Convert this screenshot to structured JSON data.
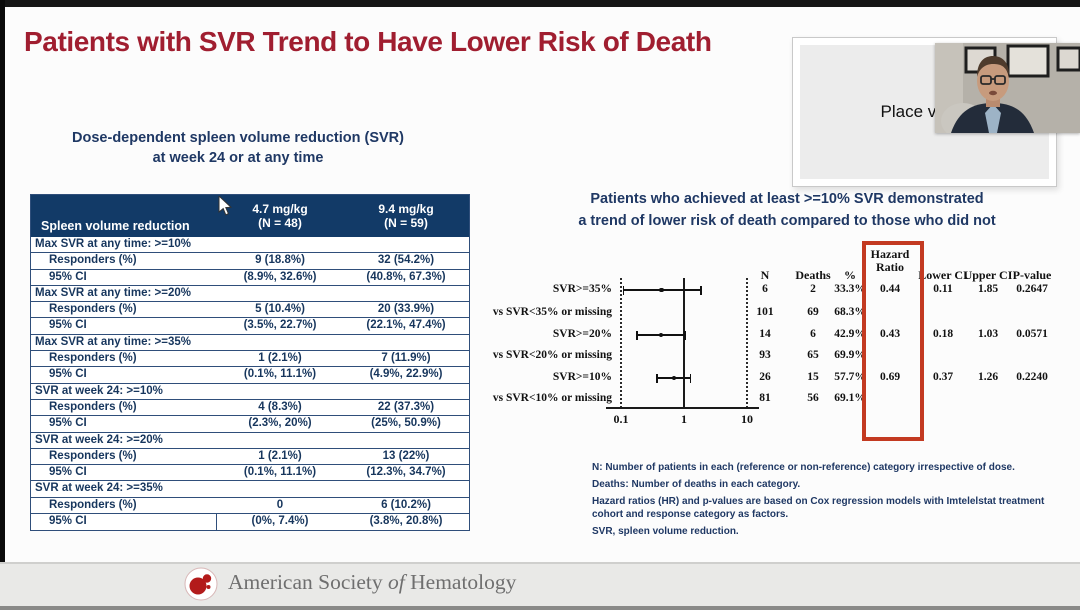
{
  "slide": {
    "title": "Patients with SVR Trend to Have Lower Risk of Death"
  },
  "colors": {
    "title_red": "#A01E30",
    "navy": "#1F3864",
    "table_header_bg": "#123A67",
    "highlight_box_red": "#C33A21",
    "ash_logo_red": "#B31B1B"
  },
  "video": {
    "placeholder_label": "Place video"
  },
  "left_panel": {
    "subtitle_line1": "Dose-dependent spleen volume reduction (SVR)",
    "subtitle_line2": "at week 24 or at any time",
    "table": {
      "col_header": "Spleen volume reduction",
      "col1_dose": "4.7 mg/kg",
      "col1_n": "(N = 48)",
      "col2_dose": "9.4 mg/kg",
      "col2_n": "(N = 59)",
      "groups": [
        {
          "label": "Max SVR at any time: >=10%",
          "rows": [
            {
              "label": "Responders (%)",
              "v1": "9 (18.8%)",
              "v2": "32 (54.2%)"
            },
            {
              "label": "95% CI",
              "v1": "(8.9%, 32.6%)",
              "v2": "(40.8%, 67.3%)"
            }
          ]
        },
        {
          "label": "Max SVR at any time: >=20%",
          "rows": [
            {
              "label": "Responders (%)",
              "v1": "5 (10.4%)",
              "v2": "20 (33.9%)"
            },
            {
              "label": "95% CI",
              "v1": "(3.5%, 22.7%)",
              "v2": "(22.1%, 47.4%)"
            }
          ]
        },
        {
          "label": "Max SVR at any time: >=35%",
          "rows": [
            {
              "label": "Responders (%)",
              "v1": "1 (2.1%)",
              "v2": "7 (11.9%)"
            },
            {
              "label": "95% CI",
              "v1": "(0.1%, 11.1%)",
              "v2": "(4.9%, 22.9%)"
            }
          ]
        },
        {
          "label": "SVR at week 24: >=10%",
          "rows": [
            {
              "label": "Responders (%)",
              "v1": "4 (8.3%)",
              "v2": "22 (37.3%)"
            },
            {
              "label": "95% CI",
              "v1": "(2.3%, 20%)",
              "v2": "(25%, 50.9%)"
            }
          ]
        },
        {
          "label": "SVR at week 24: >=20%",
          "rows": [
            {
              "label": "Responders (%)",
              "v1": "1 (2.1%)",
              "v2": "13 (22%)"
            },
            {
              "label": "95% CI",
              "v1": "(0.1%, 11.1%)",
              "v2": "(12.3%, 34.7%)"
            }
          ]
        },
        {
          "label": "SVR at week 24: >=35%",
          "rows": [
            {
              "label": "Responders (%)",
              "v1": "0",
              "v2": "6 (10.2%)"
            },
            {
              "label": "95% CI",
              "v1": "(0%, 7.4%)",
              "v2": "(3.8%, 20.8%)"
            }
          ]
        }
      ]
    }
  },
  "right_panel": {
    "headline_line1": "Patients who achieved at least >=10% SVR demonstrated",
    "headline_line2": "a trend of lower risk of death compared to those who did not",
    "forest": {
      "columns": {
        "n": "N",
        "deaths": "Deaths",
        "pct": "%",
        "hr_line1": "Hazard",
        "hr_line2": "Ratio",
        "lower": "Lower CI",
        "upper": "Upper CI",
        "p": "P-value"
      },
      "axis_ticks": [
        "0.1",
        "1",
        "10"
      ],
      "rows": [
        {
          "label": "SVR>=35%",
          "n": "6",
          "deaths": "2",
          "pct": "33.3%",
          "hr": "0.44",
          "lower": "0.11",
          "upper": "1.85",
          "p": "0.2647",
          "bar": {
            "lo": 0.11,
            "mid": 0.44,
            "hi": 1.85
          }
        },
        {
          "label": "vs SVR<35% or missing",
          "n": "101",
          "deaths": "69",
          "pct": "68.3%"
        },
        {
          "label": "SVR>=20%",
          "n": "14",
          "deaths": "6",
          "pct": "42.9%",
          "hr": "0.43",
          "lower": "0.18",
          "upper": "1.03",
          "p": "0.0571",
          "bar": {
            "lo": 0.18,
            "mid": 0.43,
            "hi": 1.03
          }
        },
        {
          "label": "vs SVR<20% or missing",
          "n": "93",
          "deaths": "65",
          "pct": "69.9%"
        },
        {
          "label": "SVR>=10%",
          "n": "26",
          "deaths": "15",
          "pct": "57.7%",
          "hr": "0.69",
          "lower": "0.37",
          "upper": "1.26",
          "p": "0.2240",
          "bar": {
            "lo": 0.37,
            "mid": 0.69,
            "hi": 1.26
          }
        },
        {
          "label": "vs SVR<10% or missing",
          "n": "81",
          "deaths": "56",
          "pct": "69.1%"
        }
      ]
    },
    "footnotes": [
      "N: Number of patients in each (reference or non-reference) category irrespective of dose.",
      "Deaths: Number of deaths in each category.",
      "Hazard ratios (HR) and p-values are based on Cox regression models with Imtelelstat treatment cohort and response category as factors.",
      "SVR, spleen volume reduction."
    ]
  },
  "footer": {
    "org_pre": "American Society ",
    "org_of": "of",
    "org_post": " Hematology"
  },
  "chart_data": [
    {
      "type": "scatter",
      "subtype": "forest-plot",
      "title": "Patients who achieved at least >=10% SVR demonstrated a trend of lower risk of death compared to those who did not",
      "x_axis": {
        "scale": "log",
        "ticks": [
          0.1,
          1,
          10
        ],
        "range": [
          0.1,
          10
        ],
        "reference_line": 1
      },
      "categories": [
        "SVR>=35%",
        "SVR>=20%",
        "SVR>=10%"
      ],
      "series": [
        {
          "name": "Hazard Ratio",
          "values": [
            0.44,
            0.43,
            0.69
          ]
        },
        {
          "name": "Lower CI",
          "values": [
            0.11,
            0.18,
            0.37
          ]
        },
        {
          "name": "Upper CI",
          "values": [
            1.85,
            1.03,
            1.26
          ]
        },
        {
          "name": "P-value",
          "values": [
            0.2647,
            0.0571,
            0.224
          ]
        }
      ],
      "annotation_table": {
        "columns": [
          "N",
          "Deaths",
          "%",
          "Hazard Ratio",
          "Lower CI",
          "Upper CI",
          "P-value"
        ],
        "rows": [
          [
            "SVR>=35%",
            6,
            2,
            "33.3%",
            0.44,
            0.11,
            1.85,
            0.2647
          ],
          [
            "vs SVR<35% or missing",
            101,
            69,
            "68.3%",
            null,
            null,
            null,
            null
          ],
          [
            "SVR>=20%",
            14,
            6,
            "42.9%",
            0.43,
            0.18,
            1.03,
            0.0571
          ],
          [
            "vs SVR<20% or missing",
            93,
            65,
            "69.9%",
            null,
            null,
            null,
            null
          ],
          [
            "SVR>=10%",
            26,
            15,
            "57.7%",
            0.69,
            0.37,
            1.26,
            0.224
          ],
          [
            "vs SVR<10% or missing",
            81,
            56,
            "69.1%",
            null,
            null,
            null,
            null
          ]
        ]
      },
      "legend_position": "none",
      "highlight": "Hazard Ratio column outlined in red box"
    },
    {
      "type": "table",
      "title": "Dose-dependent spleen volume reduction (SVR) at week 24 or at any time",
      "columns": [
        "Spleen volume reduction",
        "4.7 mg/kg (N = 48)",
        "9.4 mg/kg (N = 59)"
      ],
      "rows": [
        [
          "Max SVR at any time: >=10%",
          "",
          ""
        ],
        [
          "Responders (%)",
          "9 (18.8%)",
          "32 (54.2%)"
        ],
        [
          "95% CI",
          "(8.9%, 32.6%)",
          "(40.8%, 67.3%)"
        ],
        [
          "Max SVR at any time: >=20%",
          "",
          ""
        ],
        [
          "Responders (%)",
          "5 (10.4%)",
          "20 (33.9%)"
        ],
        [
          "95% CI",
          "(3.5%, 22.7%)",
          "(22.1%, 47.4%)"
        ],
        [
          "Max SVR at any time: >=35%",
          "",
          ""
        ],
        [
          "Responders (%)",
          "1 (2.1%)",
          "7 (11.9%)"
        ],
        [
          "95% CI",
          "(0.1%, 11.1%)",
          "(4.9%, 22.9%)"
        ],
        [
          "SVR at week 24: >=10%",
          "",
          ""
        ],
        [
          "Responders (%)",
          "4 (8.3%)",
          "22 (37.3%)"
        ],
        [
          "95% CI",
          "(2.3%, 20%)",
          "(25%, 50.9%)"
        ],
        [
          "SVR at week 24: >=20%",
          "",
          ""
        ],
        [
          "Responders (%)",
          "1 (2.1%)",
          "13 (22%)"
        ],
        [
          "95% CI",
          "(0.1%, 11.1%)",
          "(12.3%, 34.7%)"
        ],
        [
          "SVR at week 24: >=35%",
          "",
          ""
        ],
        [
          "Responders (%)",
          "0",
          "6 (10.2%)"
        ],
        [
          "95% CI",
          "(0%, 7.4%)",
          "(3.8%, 20.8%)"
        ]
      ]
    }
  ]
}
